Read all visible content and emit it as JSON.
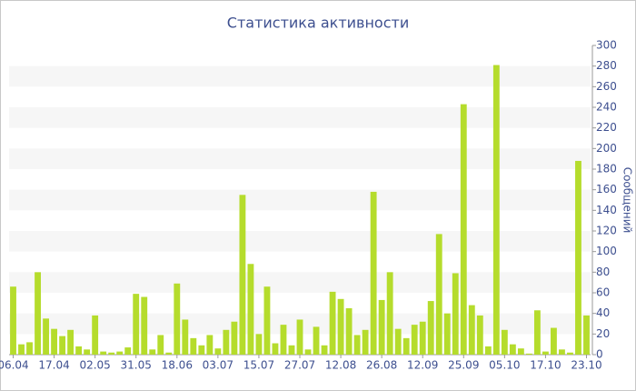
{
  "chart_data": {
    "type": "bar",
    "title": "Статистика активности",
    "y_label": "Сообщений",
    "categories": [
      "06.04",
      null,
      null,
      null,
      null,
      "17.04",
      null,
      null,
      null,
      null,
      "02.05",
      null,
      null,
      null,
      null,
      "31.05",
      null,
      null,
      null,
      null,
      "18.06",
      null,
      null,
      null,
      null,
      "03.07",
      null,
      null,
      null,
      null,
      "15.07",
      null,
      null,
      null,
      null,
      "27.07",
      null,
      null,
      null,
      null,
      "12.08",
      null,
      null,
      null,
      null,
      "26.08",
      null,
      null,
      null,
      null,
      "12.09",
      null,
      null,
      null,
      null,
      "25.09",
      null,
      null,
      null,
      null,
      "05.10",
      null,
      null,
      null,
      null,
      "17.10",
      null,
      null,
      null,
      null,
      "23.10"
    ],
    "values": [
      66,
      10,
      12,
      80,
      35,
      25,
      18,
      24,
      8,
      5,
      38,
      3,
      2,
      3,
      7,
      59,
      56,
      5,
      19,
      2,
      69,
      34,
      16,
      9,
      19,
      6,
      24,
      32,
      155,
      88,
      20,
      66,
      11,
      29,
      9,
      34,
      5,
      27,
      9,
      61,
      54,
      45,
      19,
      24,
      158,
      53,
      80,
      25,
      16,
      29,
      32,
      52,
      117,
      40,
      79,
      243,
      48,
      38,
      8,
      281,
      24,
      10,
      6,
      1,
      43,
      3,
      26,
      5,
      2,
      188,
      38
    ],
    "color": "#b5dc2c",
    "ylim": [
      0,
      300
    ],
    "yticks": [
      0,
      20,
      40,
      60,
      80,
      100,
      120,
      140,
      160,
      180,
      200,
      220,
      240,
      260,
      280,
      300
    ],
    "grid": "bands"
  }
}
